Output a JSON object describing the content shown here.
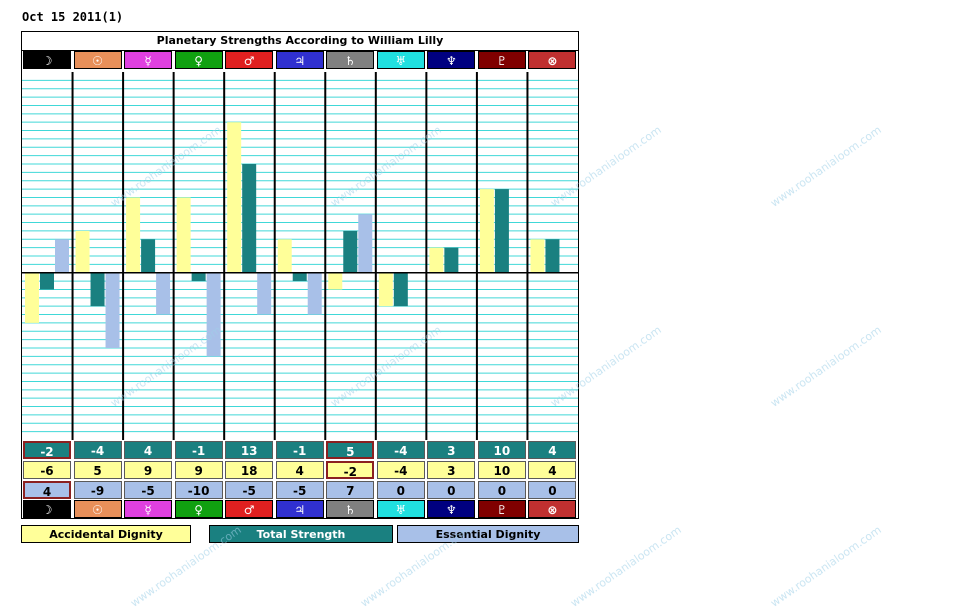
{
  "date": "Oct 15 2011(1)",
  "chart_data": {
    "type": "bar",
    "title": "Planetary Strengths According to William Lilly",
    "categories": [
      "☽",
      "☉",
      "☿",
      "♀",
      "♂",
      "♃",
      "♄",
      "♅",
      "♆",
      "♇",
      "⊗"
    ],
    "ylim": [
      -20,
      24
    ],
    "series": [
      {
        "name": "Accidental Dignity",
        "color": "#ffff99",
        "values": [
          -6,
          5,
          9,
          9,
          18,
          4,
          -2,
          -4,
          3,
          10,
          4
        ]
      },
      {
        "name": "Total Strength",
        "color": "#1a8080",
        "values": [
          -2,
          -4,
          4,
          -1,
          13,
          -1,
          5,
          -4,
          3,
          10,
          4
        ]
      },
      {
        "name": "Essential Dignity",
        "color": "#a8c0e8",
        "values": [
          4,
          -9,
          -5,
          -10,
          -5,
          -5,
          7,
          0,
          0,
          0,
          0
        ]
      }
    ],
    "row_labels_total": [
      "-2",
      "-4",
      "4",
      "-1",
      "13",
      "-1",
      "5",
      "-4",
      "3",
      "10",
      "4"
    ],
    "row_labels_accidental": [
      "-6",
      "5",
      "9",
      "9",
      "18",
      "4",
      "-2",
      "-4",
      "3",
      "10",
      "4"
    ],
    "row_labels_essential": [
      "4",
      "-9",
      "-5",
      "-10",
      "-5",
      "-5",
      "7",
      "0",
      "0",
      "0",
      "0"
    ],
    "header_colors": [
      "#000000",
      "#e8905a",
      "#e040e0",
      "#10a010",
      "#e02020",
      "#3030d0",
      "#808080",
      "#20e0e0",
      "#000080",
      "#800000",
      "#c03030"
    ],
    "grid": true
  },
  "legend": {
    "accidental": "Accidental Dignity",
    "total": "Total Strength",
    "essential": "Essential Dignity"
  },
  "watermark": "www.roohanialoom.com"
}
